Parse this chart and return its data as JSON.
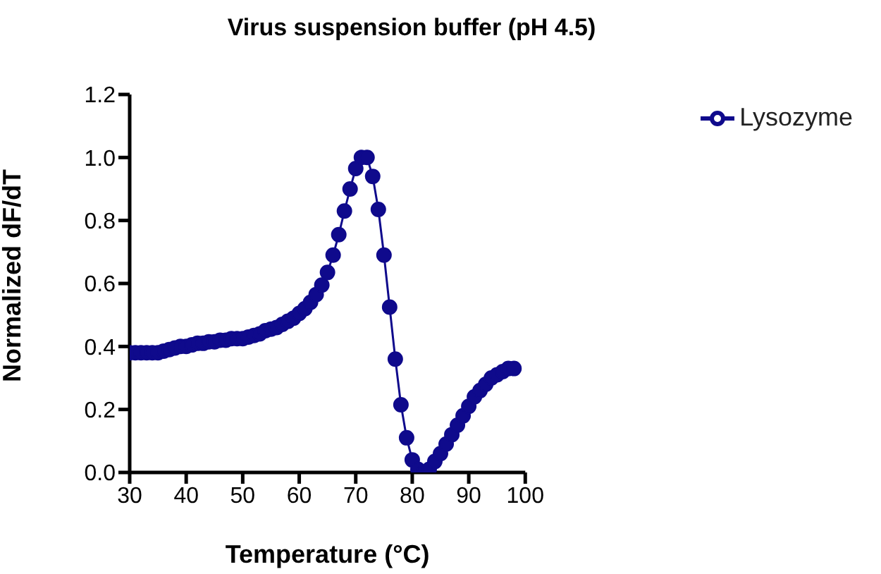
{
  "chart_data": {
    "type": "line",
    "title": "Virus suspension buffer (pH 4.5)",
    "xlabel": "Temperature (°C)",
    "ylabel": "Normalized dF/dT",
    "x": [
      30,
      31,
      32,
      33,
      34,
      35,
      36,
      37,
      38,
      39,
      40,
      41,
      42,
      43,
      44,
      45,
      46,
      47,
      48,
      49,
      50,
      51,
      52,
      53,
      54,
      55,
      56,
      57,
      58,
      59,
      60,
      61,
      62,
      63,
      64,
      65,
      66,
      67,
      68,
      69,
      70,
      71,
      72,
      73,
      74,
      75,
      76,
      77,
      78,
      79,
      80,
      81,
      82,
      83,
      84,
      85,
      86,
      87,
      88,
      89,
      90,
      91,
      92,
      93,
      94,
      95,
      96,
      97,
      98
    ],
    "series": [
      {
        "name": "Lysozyme",
        "color": "#0f0a8c",
        "values": [
          0.38,
          0.38,
          0.38,
          0.38,
          0.38,
          0.38,
          0.385,
          0.39,
          0.395,
          0.4,
          0.4,
          0.405,
          0.41,
          0.41,
          0.415,
          0.415,
          0.42,
          0.42,
          0.425,
          0.425,
          0.425,
          0.43,
          0.435,
          0.44,
          0.45,
          0.455,
          0.46,
          0.47,
          0.48,
          0.49,
          0.505,
          0.52,
          0.54,
          0.565,
          0.595,
          0.635,
          0.69,
          0.755,
          0.83,
          0.9,
          0.965,
          1.0,
          1.0,
          0.94,
          0.835,
          0.69,
          0.525,
          0.36,
          0.215,
          0.11,
          0.04,
          0.01,
          0.0,
          0.01,
          0.035,
          0.06,
          0.09,
          0.12,
          0.15,
          0.18,
          0.21,
          0.24,
          0.26,
          0.28,
          0.3,
          0.31,
          0.32,
          0.33,
          0.33
        ]
      }
    ],
    "xlim": [
      30,
      100
    ],
    "xticks": [
      30,
      40,
      50,
      60,
      70,
      80,
      90,
      100
    ],
    "ylim": [
      0,
      1.2
    ],
    "yticks": [
      {
        "value": 0,
        "label": "0.0"
      },
      0.2,
      0.4,
      0.6,
      0.8,
      {
        "value": 1,
        "label": "1.0"
      },
      1.2
    ],
    "grid": false,
    "legend": "top right",
    "marker": "circle",
    "line_style": "solid"
  }
}
